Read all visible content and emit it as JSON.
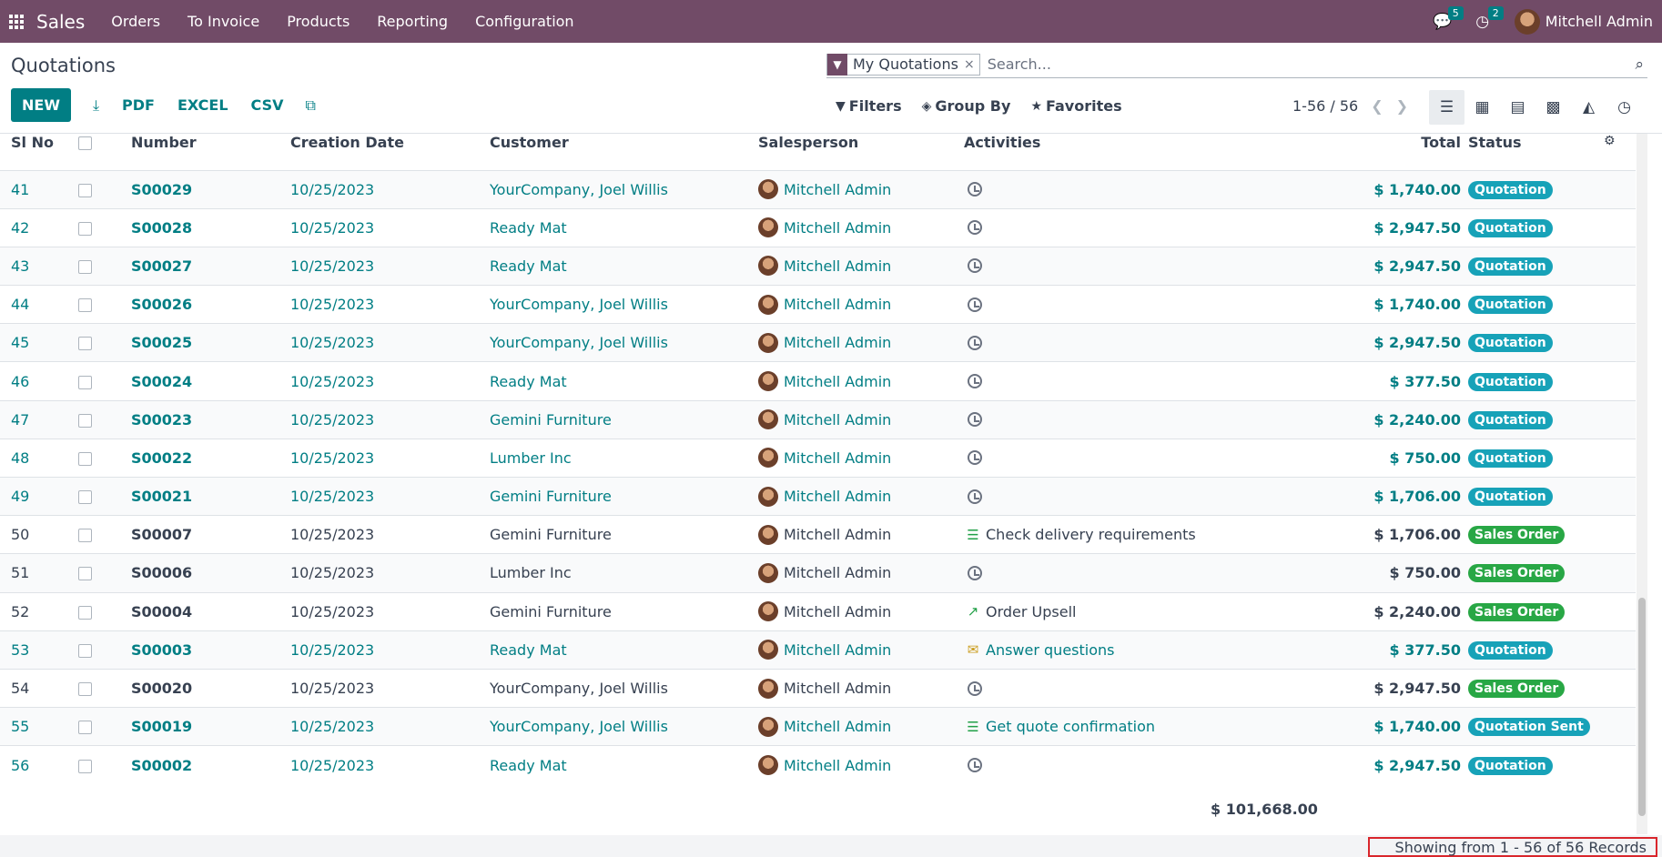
{
  "topbar": {
    "app": "Sales",
    "menu": [
      "Orders",
      "To Invoice",
      "Products",
      "Reporting",
      "Configuration"
    ],
    "messages_count": "5",
    "activities_count": "2",
    "user": "Mitchell Admin"
  },
  "control": {
    "title": "Quotations",
    "new_label": "NEW",
    "pdf_label": "PDF",
    "excel_label": "EXCEL",
    "csv_label": "CSV",
    "facet_label": "My Quotations",
    "search_placeholder": "Search...",
    "filters_label": "Filters",
    "groupby_label": "Group By",
    "favorites_label": "Favorites",
    "pager": "1-56 / 56"
  },
  "columns": [
    "Sl No",
    "",
    "Number",
    "Creation Date",
    "Customer",
    "Salesperson",
    "Activities",
    "Total",
    "Status"
  ],
  "rows": [
    {
      "sl": "41",
      "number": "S00029",
      "date": "10/25/2023",
      "customer": "YourCompany, Joel Willis",
      "salesperson": "Mitchell Admin",
      "activity": "",
      "activity_icon": "clock",
      "total": "$ 1,740.00",
      "status": "Quotation",
      "kind": "q"
    },
    {
      "sl": "42",
      "number": "S00028",
      "date": "10/25/2023",
      "customer": "Ready Mat",
      "salesperson": "Mitchell Admin",
      "activity": "",
      "activity_icon": "clock",
      "total": "$ 2,947.50",
      "status": "Quotation",
      "kind": "q"
    },
    {
      "sl": "43",
      "number": "S00027",
      "date": "10/25/2023",
      "customer": "Ready Mat",
      "salesperson": "Mitchell Admin",
      "activity": "",
      "activity_icon": "clock",
      "total": "$ 2,947.50",
      "status": "Quotation",
      "kind": "q"
    },
    {
      "sl": "44",
      "number": "S00026",
      "date": "10/25/2023",
      "customer": "YourCompany, Joel Willis",
      "salesperson": "Mitchell Admin",
      "activity": "",
      "activity_icon": "clock",
      "total": "$ 1,740.00",
      "status": "Quotation",
      "kind": "q"
    },
    {
      "sl": "45",
      "number": "S00025",
      "date": "10/25/2023",
      "customer": "YourCompany, Joel Willis",
      "salesperson": "Mitchell Admin",
      "activity": "",
      "activity_icon": "clock",
      "total": "$ 2,947.50",
      "status": "Quotation",
      "kind": "q"
    },
    {
      "sl": "46",
      "number": "S00024",
      "date": "10/25/2023",
      "customer": "Ready Mat",
      "salesperson": "Mitchell Admin",
      "activity": "",
      "activity_icon": "clock",
      "total": "$ 377.50",
      "status": "Quotation",
      "kind": "q"
    },
    {
      "sl": "47",
      "number": "S00023",
      "date": "10/25/2023",
      "customer": "Gemini Furniture",
      "salesperson": "Mitchell Admin",
      "activity": "",
      "activity_icon": "clock",
      "total": "$ 2,240.00",
      "status": "Quotation",
      "kind": "q"
    },
    {
      "sl": "48",
      "number": "S00022",
      "date": "10/25/2023",
      "customer": "Lumber Inc",
      "salesperson": "Mitchell Admin",
      "activity": "",
      "activity_icon": "clock",
      "total": "$ 750.00",
      "status": "Quotation",
      "kind": "q"
    },
    {
      "sl": "49",
      "number": "S00021",
      "date": "10/25/2023",
      "customer": "Gemini Furniture",
      "salesperson": "Mitchell Admin",
      "activity": "",
      "activity_icon": "clock",
      "total": "$ 1,706.00",
      "status": "Quotation",
      "kind": "q"
    },
    {
      "sl": "50",
      "number": "S00007",
      "date": "10/25/2023",
      "customer": "Gemini Furniture",
      "salesperson": "Mitchell Admin",
      "activity": "Check delivery requirements",
      "activity_icon": "todo",
      "total": "$ 1,706.00",
      "status": "Sales Order",
      "kind": "so"
    },
    {
      "sl": "51",
      "number": "S00006",
      "date": "10/25/2023",
      "customer": "Lumber Inc",
      "salesperson": "Mitchell Admin",
      "activity": "",
      "activity_icon": "clock",
      "total": "$ 750.00",
      "status": "Sales Order",
      "kind": "so"
    },
    {
      "sl": "52",
      "number": "S00004",
      "date": "10/25/2023",
      "customer": "Gemini Furniture",
      "salesperson": "Mitchell Admin",
      "activity": "Order Upsell",
      "activity_icon": "upsell",
      "total": "$ 2,240.00",
      "status": "Sales Order",
      "kind": "so"
    },
    {
      "sl": "53",
      "number": "S00003",
      "date": "10/25/2023",
      "customer": "Ready Mat",
      "salesperson": "Mitchell Admin",
      "activity": "Answer questions",
      "activity_icon": "email",
      "total": "$ 377.50",
      "status": "Quotation",
      "kind": "q"
    },
    {
      "sl": "54",
      "number": "S00020",
      "date": "10/25/2023",
      "customer": "YourCompany, Joel Willis",
      "salesperson": "Mitchell Admin",
      "activity": "",
      "activity_icon": "clock",
      "total": "$ 2,947.50",
      "status": "Sales Order",
      "kind": "so"
    },
    {
      "sl": "55",
      "number": "S00019",
      "date": "10/25/2023",
      "customer": "YourCompany, Joel Willis",
      "salesperson": "Mitchell Admin",
      "activity": "Get quote confirmation",
      "activity_icon": "todo",
      "total": "$ 1,740.00",
      "status": "Quotation Sent",
      "kind": "q"
    },
    {
      "sl": "56",
      "number": "S00002",
      "date": "10/25/2023",
      "customer": "Ready Mat",
      "salesperson": "Mitchell Admin",
      "activity": "",
      "activity_icon": "clock",
      "total": "$ 2,947.50",
      "status": "Quotation",
      "kind": "q"
    }
  ],
  "sum_total": "$ 101,668.00",
  "records_text": "Showing from 1 - 56 of 56 Records",
  "colors": {
    "brand": "#714B67",
    "accent": "#017E84",
    "quotation": "#17A2B8",
    "sales_order": "#28A745"
  }
}
